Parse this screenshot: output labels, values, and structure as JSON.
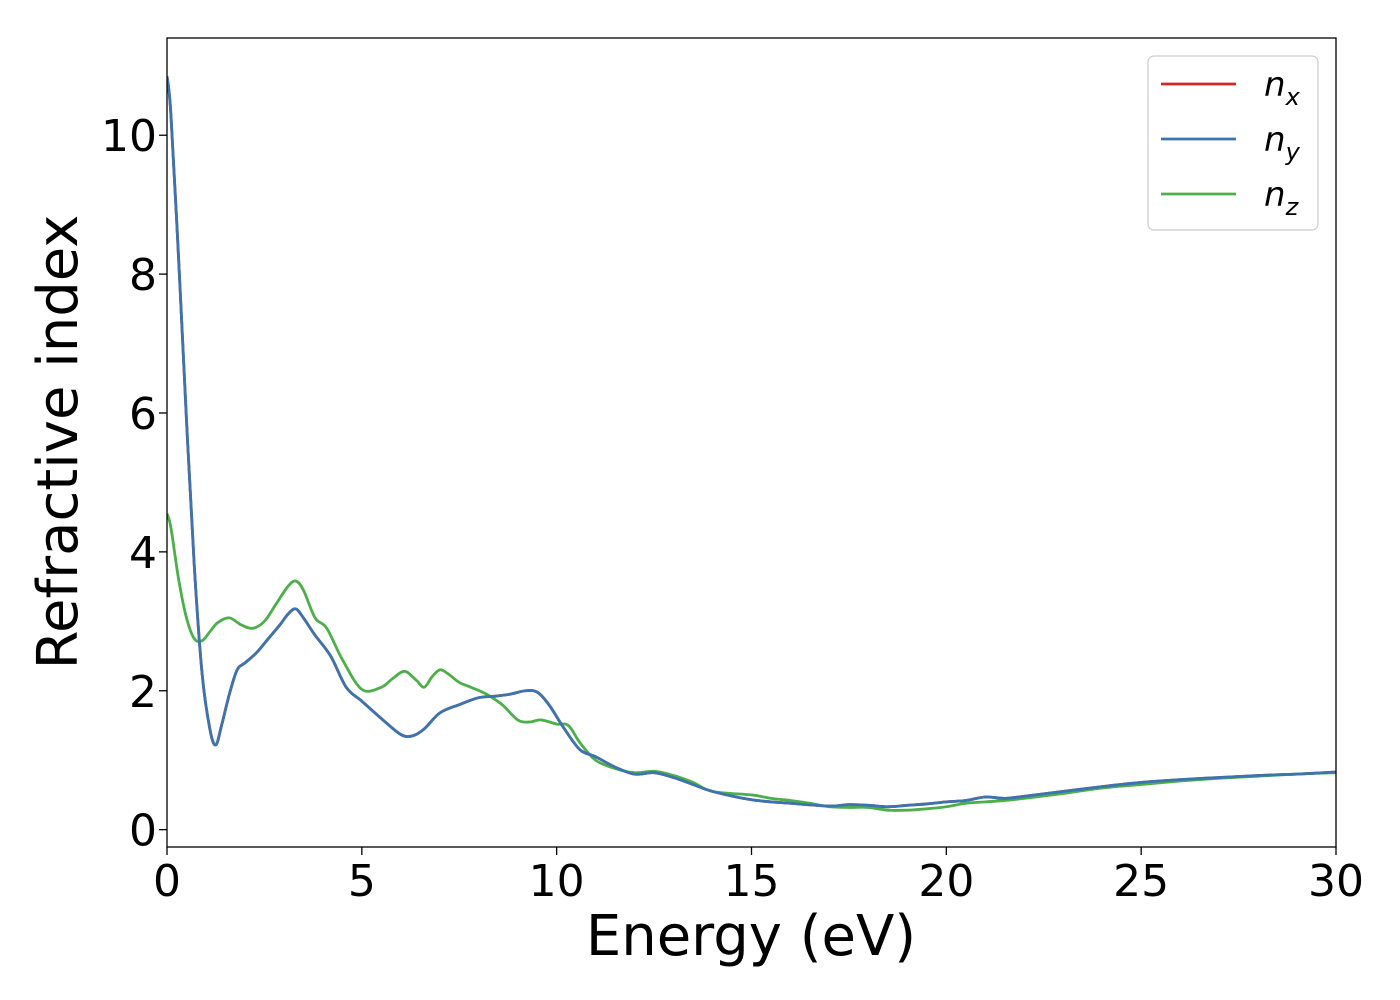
{
  "chart_data": {
    "type": "line",
    "xlabel": "Energy (eV)",
    "ylabel": "Refractive index",
    "xlim": [
      0,
      30
    ],
    "ylim": [
      -0.25,
      11.4
    ],
    "xticks": [
      0,
      5,
      10,
      15,
      20,
      25,
      30
    ],
    "yticks": [
      0,
      2,
      4,
      6,
      8,
      10
    ],
    "grid": false,
    "legend_position": "top-right",
    "series": [
      {
        "name": "n",
        "subscript": "x",
        "color": "#d62728",
        "x": [
          0,
          0.1,
          0.3,
          0.5,
          0.7,
          0.9,
          1.1,
          1.25,
          1.4,
          1.6,
          1.8,
          2.0,
          2.3,
          2.6,
          2.9,
          3.1,
          3.3,
          3.5,
          3.8,
          4.2,
          4.6,
          5.0,
          5.5,
          6.0,
          6.3,
          6.6,
          7.0,
          7.5,
          8.0,
          8.4,
          8.8,
          9.2,
          9.5,
          9.8,
          10.2,
          10.6,
          11.0,
          11.5,
          12.0,
          12.5,
          13.0,
          13.5,
          14.0,
          15.0,
          16.0,
          17.0,
          17.5,
          18.0,
          18.5,
          19.0,
          19.5,
          20.0,
          20.5,
          21.0,
          21.5,
          22.0,
          23.0,
          24.0,
          25.0,
          26.0,
          27.0,
          28.0,
          29.0,
          30.0
        ],
        "values": [
          10.85,
          10.3,
          8.2,
          5.9,
          3.8,
          2.25,
          1.45,
          1.22,
          1.5,
          1.95,
          2.3,
          2.4,
          2.55,
          2.75,
          2.95,
          3.1,
          3.18,
          3.05,
          2.8,
          2.5,
          2.05,
          1.85,
          1.6,
          1.37,
          1.35,
          1.45,
          1.68,
          1.8,
          1.9,
          1.92,
          1.95,
          2.0,
          1.98,
          1.8,
          1.45,
          1.15,
          1.05,
          0.9,
          0.8,
          0.82,
          0.75,
          0.65,
          0.55,
          0.43,
          0.38,
          0.34,
          0.36,
          0.35,
          0.33,
          0.35,
          0.37,
          0.4,
          0.42,
          0.47,
          0.45,
          0.48,
          0.55,
          0.62,
          0.68,
          0.72,
          0.75,
          0.78,
          0.8,
          0.83
        ]
      },
      {
        "name": "n",
        "subscript": "y",
        "color": "#3a75b0",
        "x": [
          0,
          0.1,
          0.3,
          0.5,
          0.7,
          0.9,
          1.1,
          1.25,
          1.4,
          1.6,
          1.8,
          2.0,
          2.3,
          2.6,
          2.9,
          3.1,
          3.3,
          3.5,
          3.8,
          4.2,
          4.6,
          5.0,
          5.5,
          6.0,
          6.3,
          6.6,
          7.0,
          7.5,
          8.0,
          8.4,
          8.8,
          9.2,
          9.5,
          9.8,
          10.2,
          10.6,
          11.0,
          11.5,
          12.0,
          12.5,
          13.0,
          13.5,
          14.0,
          15.0,
          16.0,
          17.0,
          17.5,
          18.0,
          18.5,
          19.0,
          19.5,
          20.0,
          20.5,
          21.0,
          21.5,
          22.0,
          23.0,
          24.0,
          25.0,
          26.0,
          27.0,
          28.0,
          29.0,
          30.0
        ],
        "values": [
          10.85,
          10.3,
          8.2,
          5.9,
          3.8,
          2.25,
          1.45,
          1.22,
          1.5,
          1.95,
          2.3,
          2.4,
          2.55,
          2.75,
          2.95,
          3.1,
          3.18,
          3.05,
          2.8,
          2.5,
          2.05,
          1.85,
          1.6,
          1.37,
          1.35,
          1.45,
          1.68,
          1.8,
          1.9,
          1.92,
          1.95,
          2.0,
          1.98,
          1.8,
          1.45,
          1.15,
          1.05,
          0.9,
          0.8,
          0.82,
          0.75,
          0.65,
          0.55,
          0.43,
          0.38,
          0.34,
          0.36,
          0.35,
          0.33,
          0.35,
          0.37,
          0.4,
          0.42,
          0.47,
          0.45,
          0.48,
          0.55,
          0.62,
          0.68,
          0.72,
          0.75,
          0.78,
          0.8,
          0.83
        ]
      },
      {
        "name": "n",
        "subscript": "z",
        "color": "#4daf4a",
        "x": [
          0,
          0.1,
          0.3,
          0.5,
          0.7,
          0.9,
          1.1,
          1.3,
          1.6,
          1.9,
          2.2,
          2.5,
          2.8,
          3.1,
          3.3,
          3.5,
          3.8,
          4.1,
          4.5,
          5.0,
          5.5,
          5.8,
          6.1,
          6.4,
          6.6,
          6.8,
          7.0,
          7.2,
          7.5,
          7.8,
          8.2,
          8.6,
          9.0,
          9.3,
          9.6,
          10.0,
          10.3,
          10.6,
          11.0,
          11.5,
          12.0,
          12.5,
          13.0,
          13.5,
          14.0,
          15.0,
          15.5,
          16.0,
          16.5,
          17.0,
          17.5,
          18.0,
          18.5,
          19.0,
          19.5,
          20.0,
          20.5,
          21.0,
          21.5,
          22.0,
          23.0,
          24.0,
          25.0,
          26.0,
          27.0,
          28.0,
          29.0,
          30.0
        ],
        "values": [
          4.55,
          4.35,
          3.6,
          3.05,
          2.75,
          2.72,
          2.85,
          2.98,
          3.05,
          2.95,
          2.9,
          3.0,
          3.25,
          3.5,
          3.58,
          3.45,
          3.05,
          2.9,
          2.45,
          2.02,
          2.05,
          2.18,
          2.28,
          2.15,
          2.05,
          2.2,
          2.3,
          2.25,
          2.12,
          2.05,
          1.95,
          1.8,
          1.58,
          1.55,
          1.58,
          1.52,
          1.5,
          1.25,
          1.0,
          0.88,
          0.82,
          0.84,
          0.78,
          0.68,
          0.55,
          0.5,
          0.45,
          0.42,
          0.38,
          0.33,
          0.32,
          0.32,
          0.28,
          0.28,
          0.3,
          0.33,
          0.38,
          0.4,
          0.42,
          0.45,
          0.52,
          0.6,
          0.65,
          0.7,
          0.74,
          0.77,
          0.8,
          0.82
        ]
      }
    ]
  }
}
